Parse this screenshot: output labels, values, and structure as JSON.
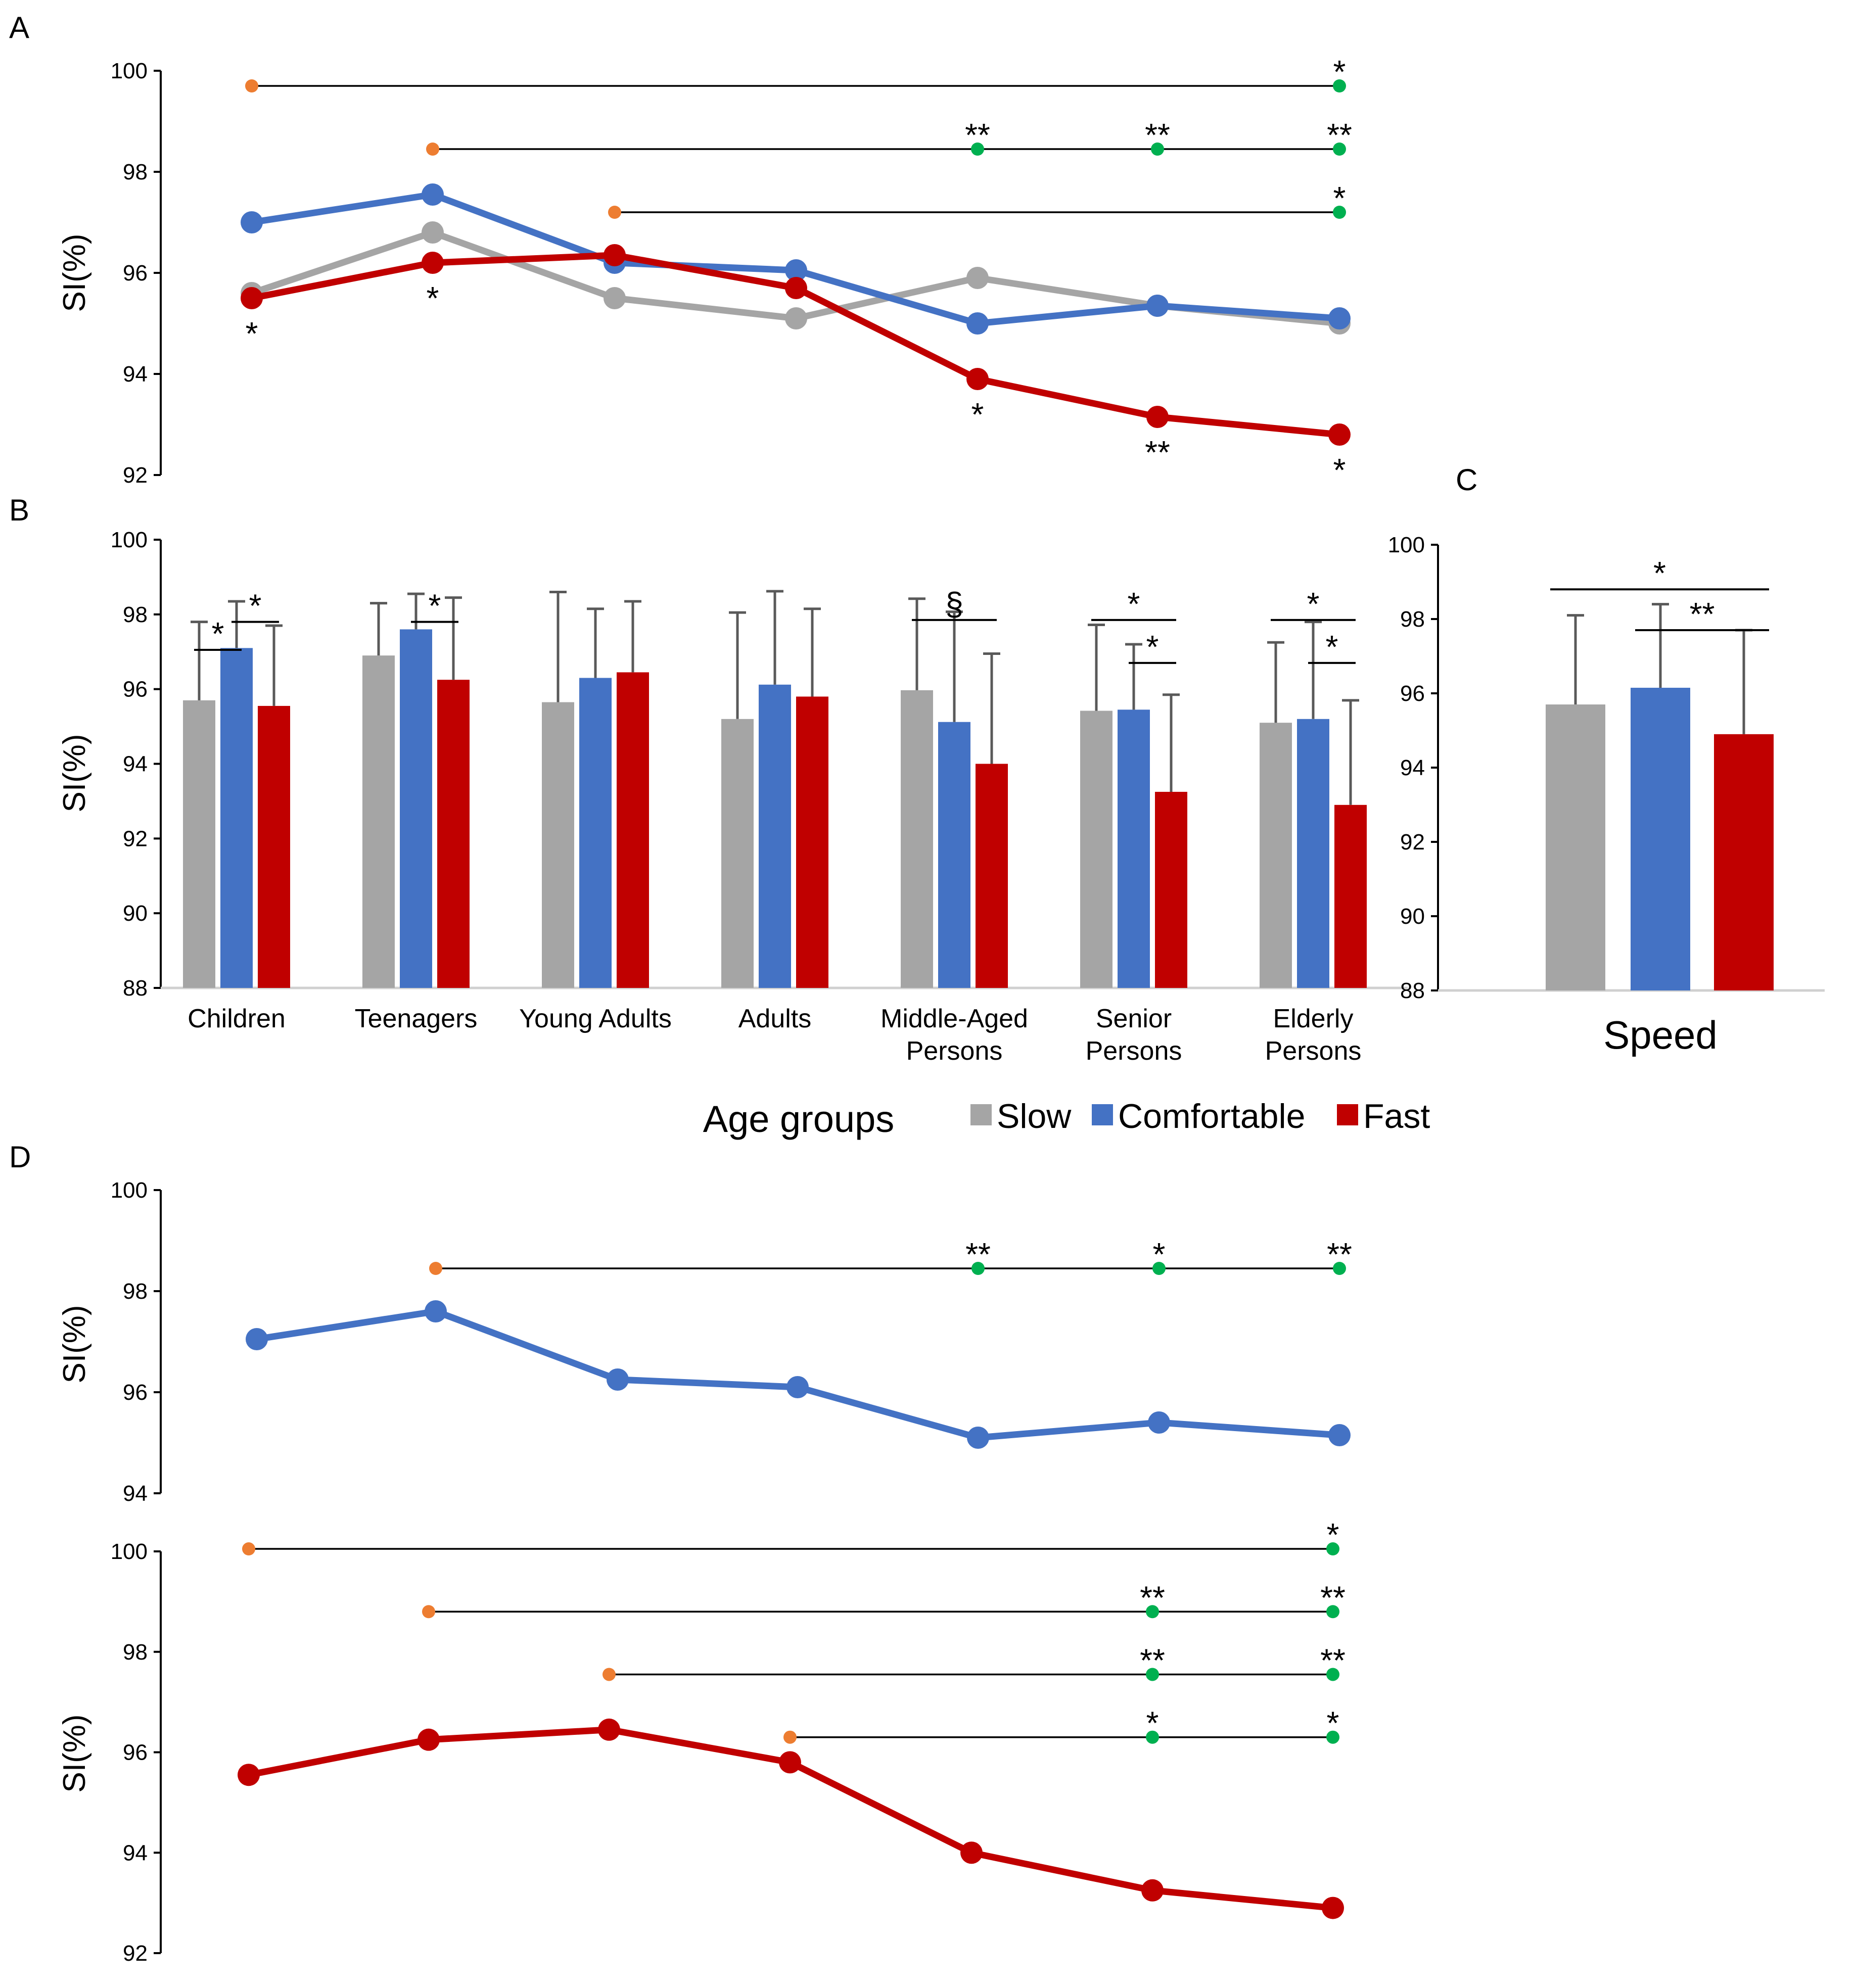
{
  "figure": {
    "panel_letters": [
      "A",
      "B",
      "C",
      "D"
    ],
    "y_axis_label": "SI(%)",
    "x_axis_label": "Age groups",
    "c_category": "Speed"
  },
  "legend": {
    "items": [
      {
        "label": "Slow",
        "color": "#a5a5a5"
      },
      {
        "label": "Comfortable",
        "color": "#4472c4"
      },
      {
        "label": "Fast",
        "color": "#c00000"
      }
    ]
  },
  "colors": {
    "slow": "#a5a5a5",
    "comfortable": "#4472c4",
    "fast": "#c00000",
    "reference_dot": "#ed7d31",
    "significant_dot": "#00b050",
    "error_bar": "#595959"
  },
  "chart_data": [
    {
      "panel": "A",
      "type": "line",
      "ylabel": "SI(%)",
      "ylim": [
        92,
        100
      ],
      "yticks": [
        92,
        94,
        96,
        98,
        100
      ],
      "categories": [
        "Children",
        "Teenagers",
        "Young Adults",
        "Adults",
        "Middle-Aged Persons",
        "Senior Persons",
        "Elderly Persons"
      ],
      "series": [
        {
          "name": "Slow",
          "values": [
            95.6,
            96.8,
            95.5,
            95.1,
            95.9,
            95.35,
            95.0
          ]
        },
        {
          "name": "Comfortable",
          "values": [
            97.0,
            97.55,
            96.2,
            96.05,
            95.0,
            95.35,
            95.1
          ]
        },
        {
          "name": "Fast",
          "values": [
            95.5,
            96.2,
            96.35,
            95.7,
            93.9,
            93.15,
            92.8
          ]
        }
      ],
      "point_annotations": [
        {
          "category_index": 0,
          "value": 95.5,
          "text": "*"
        },
        {
          "category_index": 1,
          "value": 96.2,
          "text": "*"
        },
        {
          "category_index": 4,
          "value": 93.9,
          "text": "*"
        },
        {
          "category_index": 5,
          "value": 93.15,
          "text": "**"
        },
        {
          "category_index": 6,
          "value": 92.8,
          "text": "*"
        }
      ],
      "comparisons": [
        {
          "level": 99.7,
          "reference_index": 0,
          "targets": [
            {
              "index": 6,
              "text": "*"
            }
          ]
        },
        {
          "level": 98.45,
          "reference_index": 1,
          "targets": [
            {
              "index": 4,
              "text": "**"
            },
            {
              "index": 5,
              "text": "**"
            },
            {
              "index": 6,
              "text": "**"
            }
          ]
        },
        {
          "level": 97.2,
          "reference_index": 2,
          "targets": [
            {
              "index": 6,
              "text": "*"
            }
          ]
        }
      ]
    },
    {
      "panel": "B",
      "type": "bar",
      "ylabel": "SI(%)",
      "ylim": [
        88,
        100
      ],
      "yticks": [
        88,
        90,
        92,
        94,
        96,
        98,
        100
      ],
      "categories": [
        "Children",
        "Teenagers",
        "Young Adults",
        "Adults",
        "Middle-Aged Persons",
        "Senior Persons",
        "Elderly Persons"
      ],
      "category_lines": [
        [
          "Children"
        ],
        [
          "Teenagers"
        ],
        [
          "Young Adults"
        ],
        [
          "Adults"
        ],
        [
          "Middle-Aged",
          "Persons"
        ],
        [
          "Senior",
          "Persons"
        ],
        [
          "Elderly",
          "Persons"
        ]
      ],
      "series": [
        {
          "name": "Slow",
          "values": [
            95.7,
            96.9,
            95.65,
            95.2,
            95.97,
            95.42,
            95.1
          ],
          "errors": [
            2.1,
            1.4,
            2.95,
            2.85,
            2.45,
            2.3,
            2.15
          ]
        },
        {
          "name": "Comfortable",
          "values": [
            97.1,
            97.6,
            96.3,
            96.12,
            95.12,
            95.45,
            95.2
          ],
          "errors": [
            1.25,
            0.95,
            1.85,
            2.5,
            2.95,
            1.75,
            2.6
          ]
        },
        {
          "name": "Fast",
          "values": [
            95.55,
            96.25,
            96.45,
            95.8,
            94.0,
            93.25,
            92.9
          ],
          "errors": [
            2.15,
            2.2,
            1.9,
            2.35,
            2.95,
            2.6,
            2.8
          ]
        }
      ],
      "brackets": [
        {
          "group": 0,
          "from": 0,
          "to": 1,
          "level": 97.05,
          "text": "*"
        },
        {
          "group": 0,
          "from": 1,
          "to": 2,
          "level": 97.8,
          "text": "*"
        },
        {
          "group": 1,
          "from": 1,
          "to": 2,
          "level": 97.8,
          "text": "*"
        },
        {
          "group": 4,
          "from": 0,
          "to": 2,
          "level": 97.85,
          "text": "§"
        },
        {
          "group": 5,
          "from": 0,
          "to": 2,
          "level": 97.85,
          "text": "*"
        },
        {
          "group": 5,
          "from": 1,
          "to": 2,
          "level": 96.7,
          "text": "*"
        },
        {
          "group": 6,
          "from": 0,
          "to": 2,
          "level": 97.85,
          "text": "*"
        },
        {
          "group": 6,
          "from": 1,
          "to": 2,
          "level": 96.7,
          "text": "*"
        }
      ]
    },
    {
      "panel": "C",
      "type": "bar",
      "ylim": [
        88,
        100
      ],
      "yticks": [
        88,
        90,
        92,
        94,
        96,
        98,
        100
      ],
      "categories": [
        "Speed"
      ],
      "series": [
        {
          "name": "Slow",
          "values": [
            95.7
          ],
          "errors": [
            2.4
          ]
        },
        {
          "name": "Comfortable",
          "values": [
            96.15
          ],
          "errors": [
            2.25
          ]
        },
        {
          "name": "Fast",
          "values": [
            94.9
          ],
          "errors": [
            2.8
          ]
        }
      ],
      "brackets": [
        {
          "group": 0,
          "from": 0,
          "to": 2,
          "level": 98.8,
          "text": "*"
        },
        {
          "group": 0,
          "from": 1,
          "to": 2,
          "level": 97.7,
          "text": "**"
        }
      ]
    },
    {
      "panel": "D-top",
      "type": "line",
      "ylabel": "SI(%)",
      "ylim": [
        94,
        100
      ],
      "yticks": [
        94,
        96,
        98,
        100
      ],
      "categories": [
        "Children",
        "Teenagers",
        "Young Adults",
        "Adults",
        "Middle-Aged Persons",
        "Senior Persons",
        "Elderly Persons"
      ],
      "series": [
        {
          "name": "Comfortable",
          "values": [
            97.05,
            97.6,
            96.25,
            96.1,
            95.1,
            95.4,
            95.15
          ]
        }
      ],
      "comparisons": [
        {
          "level": 98.45,
          "reference_index": 1,
          "targets": [
            {
              "index": 4,
              "text": "**"
            },
            {
              "index": 5,
              "text": "*"
            },
            {
              "index": 6,
              "text": "**"
            }
          ]
        }
      ]
    },
    {
      "panel": "D-bottom",
      "type": "line",
      "ylabel": "SI(%)",
      "ylim": [
        92,
        100
      ],
      "yticks": [
        92,
        94,
        96,
        98,
        100
      ],
      "categories": [
        "Children",
        "Teenagers",
        "Young Adults",
        "Adults",
        "Middle-Aged Persons",
        "Senior Persons",
        "Elderly Persons"
      ],
      "series": [
        {
          "name": "Fast",
          "values": [
            95.55,
            96.25,
            96.45,
            95.8,
            94.0,
            93.25,
            92.9
          ]
        }
      ],
      "comparisons": [
        {
          "level": 100.05,
          "reference_index": 0,
          "targets": [
            {
              "index": 6,
              "text": "*"
            }
          ]
        },
        {
          "level": 98.8,
          "reference_index": 1,
          "targets": [
            {
              "index": 5,
              "text": "**"
            },
            {
              "index": 6,
              "text": "**"
            }
          ]
        },
        {
          "level": 97.55,
          "reference_index": 2,
          "targets": [
            {
              "index": 5,
              "text": "**"
            },
            {
              "index": 6,
              "text": "**"
            }
          ]
        },
        {
          "level": 96.3,
          "reference_index": 3,
          "targets": [
            {
              "index": 5,
              "text": "*"
            },
            {
              "index": 6,
              "text": "*"
            }
          ]
        }
      ]
    }
  ]
}
